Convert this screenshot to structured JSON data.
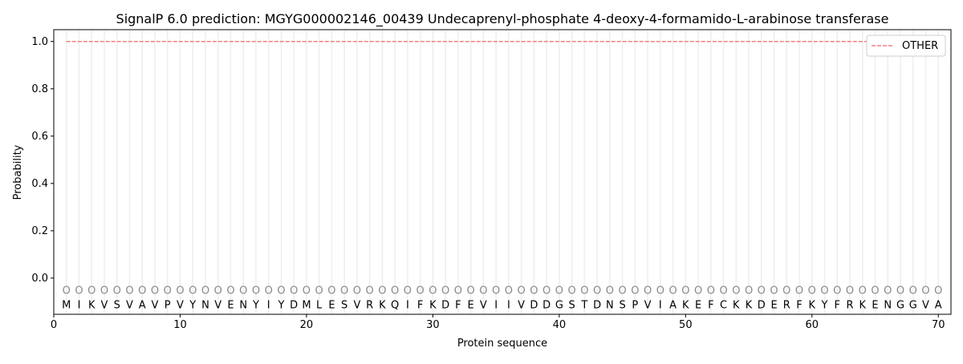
{
  "chart_data": {
    "type": "line",
    "title": "SignalP 6.0 prediction: MGYG000002146_00439 Undecaprenyl-phosphate 4-deoxy-4-formamido-L-arabinose transferase",
    "xlabel": "Protein sequence",
    "ylabel": "Probability",
    "xlim": [
      0,
      71
    ],
    "ylim": [
      -0.153,
      1.05
    ],
    "xticks": [
      0,
      10,
      20,
      30,
      40,
      50,
      60,
      70
    ],
    "yticks": [
      0.0,
      0.2,
      0.4,
      0.6,
      0.8,
      1.0
    ],
    "grid": "vertical lines at each residue",
    "legend_position": "top-right",
    "sequence": [
      "M",
      "I",
      "K",
      "V",
      "S",
      "V",
      "A",
      "V",
      "P",
      "V",
      "Y",
      "N",
      "V",
      "E",
      "N",
      "Y",
      "I",
      "Y",
      "D",
      "M",
      "L",
      "E",
      "S",
      "V",
      "R",
      "K",
      "Q",
      "I",
      "F",
      "K",
      "D",
      "F",
      "E",
      "V",
      "I",
      "I",
      "V",
      "D",
      "D",
      "G",
      "S",
      "T",
      "D",
      "N",
      "S",
      "P",
      "V",
      "I",
      "A",
      "K",
      "E",
      "F",
      "C",
      "K",
      "K",
      "D",
      "E",
      "R",
      "F",
      "K",
      "Y",
      "F",
      "R",
      "K",
      "E",
      "N",
      "G",
      "G",
      "V",
      "A"
    ],
    "prediction_label": "O",
    "series": [
      {
        "name": "OTHER",
        "color": "#f08080",
        "style": "dashed",
        "x_range": [
          1,
          70
        ],
        "value": 1.0
      }
    ]
  }
}
